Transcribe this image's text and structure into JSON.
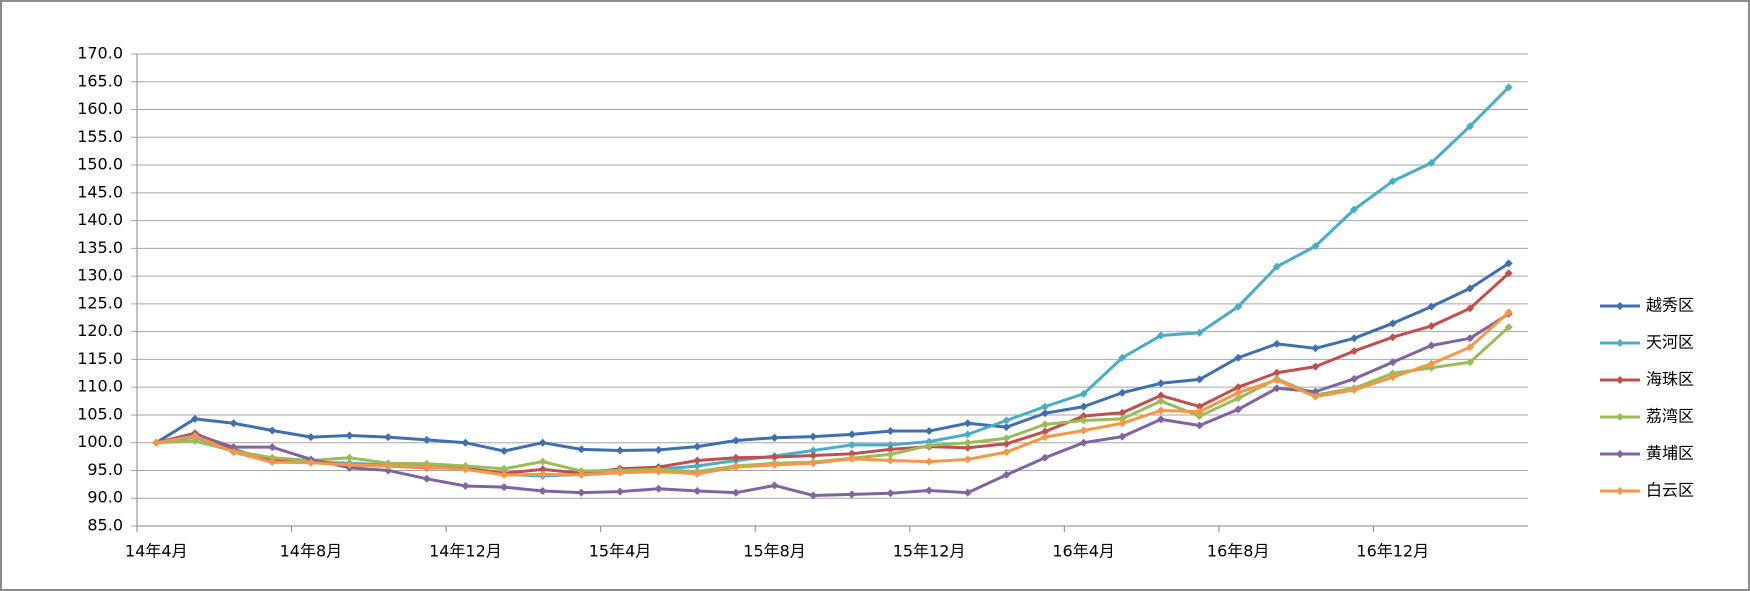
{
  "chart_data": {
    "type": "line",
    "categories": [
      "14年4月",
      null,
      null,
      null,
      "14年8月",
      null,
      null,
      null,
      "14年12月",
      null,
      null,
      null,
      "15年4月",
      null,
      null,
      null,
      "15年8月",
      null,
      null,
      null,
      "15年12月",
      null,
      null,
      null,
      "16年4月",
      null,
      null,
      null,
      "16年8月",
      null,
      null,
      null,
      "16年12月",
      null,
      null,
      null
    ],
    "series": [
      {
        "name": "越秀区",
        "color": "#3f6fb0",
        "values": [
          100,
          104.3,
          103.5,
          102.2,
          101,
          101.3,
          101,
          100.5,
          100,
          98.5,
          100,
          98.8,
          98.6,
          98.7,
          99.3,
          100.4,
          100.9,
          101.1,
          101.5,
          102.1,
          102.1,
          103.5,
          102.8,
          105.3,
          106.5,
          109,
          110.7,
          111.4,
          115.3,
          117.8,
          117,
          118.8,
          121.5,
          124.5,
          127.8,
          132.3
        ]
      },
      {
        "name": "天河区",
        "color": "#4bacc6",
        "values": [
          100,
          101,
          98.5,
          97.2,
          96.5,
          96.3,
          96,
          95.8,
          95.3,
          94.3,
          94,
          94.3,
          94.8,
          95.2,
          95.8,
          96.8,
          97.6,
          98.6,
          99.6,
          99.6,
          100.2,
          101.5,
          104,
          106.5,
          108.8,
          115.3,
          119.3,
          119.8,
          124.5,
          131.7,
          135.4,
          142,
          147.1,
          150.4,
          157,
          164
        ]
      },
      {
        "name": "海珠区",
        "color": "#c0504d",
        "values": [
          100,
          101.7,
          98.8,
          96.7,
          96.6,
          96,
          95.8,
          95.5,
          95.4,
          94.5,
          95.2,
          94.5,
          95.3,
          95.6,
          96.8,
          97.3,
          97.4,
          97.7,
          98,
          98.8,
          99.3,
          99.1,
          99.8,
          102,
          104.8,
          105.4,
          108.5,
          106.5,
          110,
          112.6,
          113.7,
          116.5,
          119,
          121,
          124.2,
          130.5
        ]
      },
      {
        "name": "荔湾区",
        "color": "#9bbb59",
        "values": [
          100,
          100.3,
          98.5,
          97.3,
          96.8,
          97.3,
          96.3,
          96.2,
          95.8,
          95.3,
          96.6,
          94.9,
          95,
          95.2,
          94.8,
          95.8,
          96.3,
          96.5,
          97.2,
          97.9,
          99.5,
          100,
          100.8,
          103.3,
          104,
          104.3,
          107.5,
          104.8,
          108,
          111.5,
          108.6,
          109.8,
          112.5,
          113.5,
          114.5,
          120.8
        ]
      },
      {
        "name": "黄埔区",
        "color": "#8064a2",
        "values": [
          100,
          101.5,
          99.2,
          99.2,
          97,
          95.5,
          95,
          93.5,
          92.2,
          92,
          91.3,
          91,
          91.2,
          91.7,
          91.3,
          91,
          92.3,
          90.5,
          90.7,
          90.9,
          91.4,
          91,
          94.2,
          97.3,
          100,
          101.1,
          104.2,
          103.1,
          106,
          109.8,
          109.2,
          111.5,
          114.5,
          117.5,
          118.8,
          123.2
        ]
      },
      {
        "name": "白云区",
        "color": "#f79646",
        "values": [
          100,
          101.2,
          98.3,
          96.5,
          96.4,
          96,
          95.8,
          95.6,
          95.2,
          94.2,
          94.3,
          94.2,
          94.6,
          94.8,
          94.4,
          95.6,
          96,
          96.3,
          97.1,
          96.8,
          96.6,
          97,
          98.3,
          101,
          102.2,
          103.5,
          105.8,
          105.6,
          109,
          111.3,
          108.3,
          109.5,
          111.8,
          114.2,
          117.2,
          123.5
        ]
      }
    ],
    "ylim": [
      85,
      170
    ],
    "yticks": [
      {
        "value": 85,
        "label": "85.0"
      },
      {
        "value": 90,
        "label": "90.0"
      },
      {
        "value": 95,
        "label": "95.0"
      },
      {
        "value": 100,
        "label": "100.0"
      },
      {
        "value": 105,
        "label": "105.0"
      },
      {
        "value": 110,
        "label": "110.0"
      },
      {
        "value": 115,
        "label": "115.0"
      },
      {
        "value": 120,
        "label": "120.0"
      },
      {
        "value": 125,
        "label": "125.0"
      },
      {
        "value": 130,
        "label": "130.0"
      },
      {
        "value": 135,
        "label": "135.0"
      },
      {
        "value": 140,
        "label": "140.0"
      },
      {
        "value": 145,
        "label": "145.0"
      },
      {
        "value": 150,
        "label": "150.0"
      },
      {
        "value": 155,
        "label": "155.0"
      },
      {
        "value": 160,
        "label": "160.0"
      },
      {
        "value": 165,
        "label": "165.0"
      },
      {
        "value": 170,
        "label": "170.0"
      }
    ],
    "grid": true,
    "legend": "right"
  }
}
